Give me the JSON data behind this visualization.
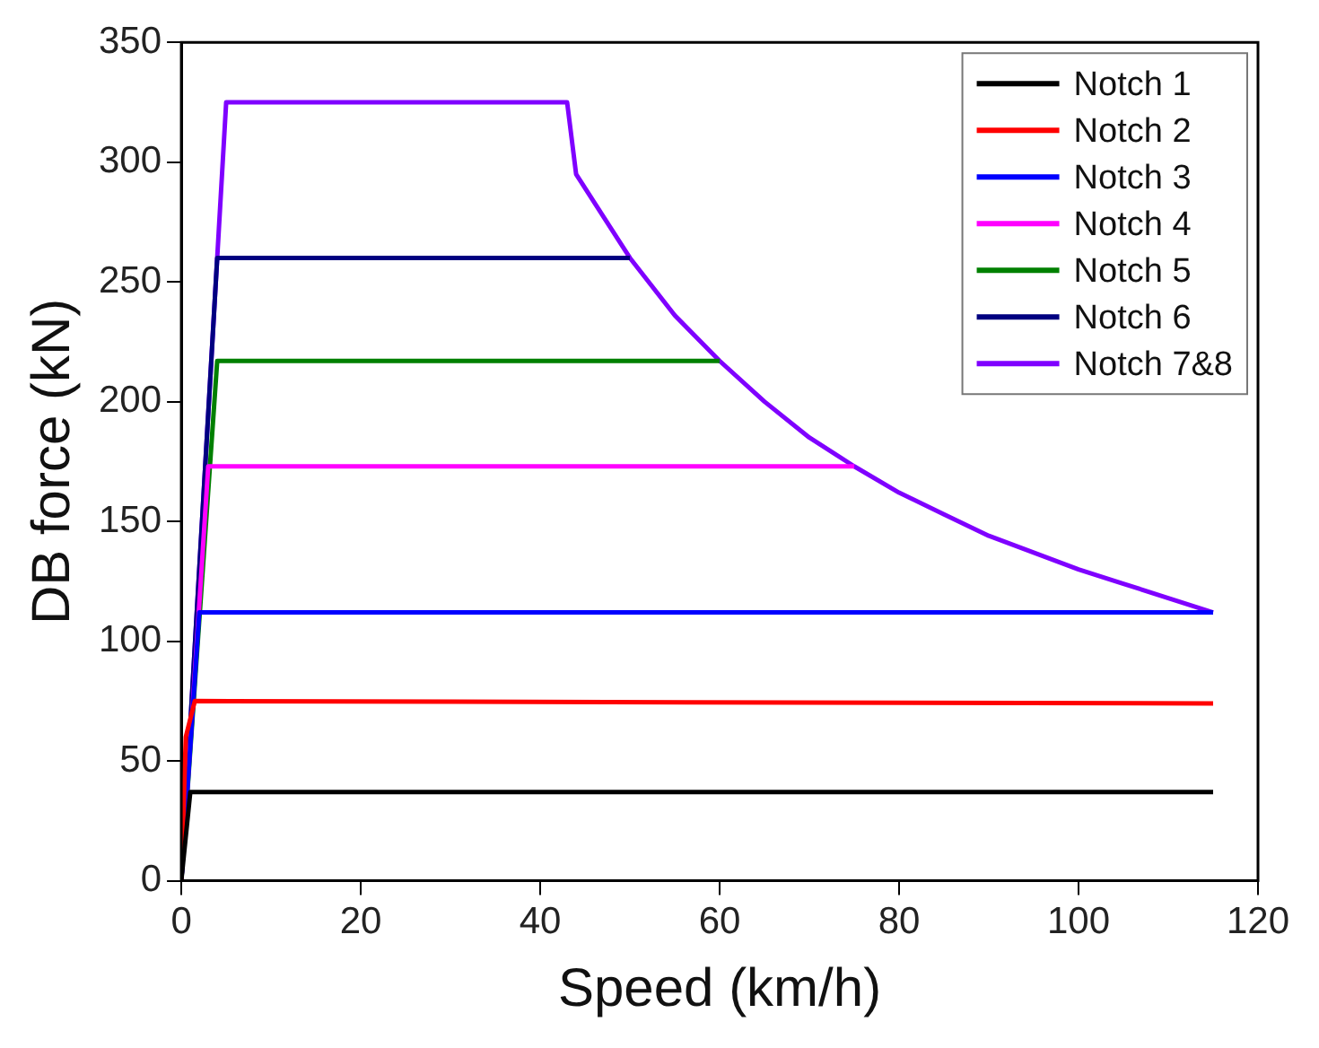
{
  "chart_data": {
    "type": "line",
    "xlabel": "Speed (km/h)",
    "ylabel": "DB force (kN)",
    "xlim": [
      0,
      120
    ],
    "xticks": [
      0,
      20,
      40,
      60,
      80,
      100,
      120
    ],
    "ylim": [
      0,
      350
    ],
    "yticks": [
      0,
      50,
      100,
      150,
      200,
      250,
      300,
      350
    ],
    "grid": false,
    "legend": "top right",
    "marker": "none",
    "line_style": "solid",
    "series": [
      {
        "name": "Notch 1",
        "color": "#000000",
        "x": [
          0,
          1,
          115
        ],
        "values": [
          0,
          37,
          37
        ]
      },
      {
        "name": "Notch 2",
        "color": "#ff0000",
        "x": [
          0,
          0.5,
          1.5,
          115
        ],
        "values": [
          0,
          60,
          75,
          74
        ]
      },
      {
        "name": "Notch 3",
        "color": "#0000ff",
        "x": [
          0,
          2,
          115
        ],
        "values": [
          0,
          112,
          112
        ]
      },
      {
        "name": "Notch 4",
        "color": "#ff00ff",
        "x": [
          0,
          3,
          75
        ],
        "values": [
          0,
          173,
          173
        ]
      },
      {
        "name": "Notch 5",
        "color": "#008000",
        "x": [
          0,
          4,
          60
        ],
        "values": [
          0,
          217,
          217
        ]
      },
      {
        "name": "Notch 6",
        "color": "#000080",
        "x": [
          0,
          4,
          50
        ],
        "values": [
          0,
          260,
          260
        ]
      },
      {
        "name": "Notch 7&8",
        "color": "#7f00ff",
        "x": [
          0,
          5,
          43,
          44,
          50,
          55,
          60,
          65,
          70,
          75,
          80,
          85,
          90,
          95,
          100,
          105,
          110,
          115
        ],
        "values": [
          0,
          325,
          325,
          295,
          260,
          236,
          217,
          200,
          185,
          173,
          162,
          153,
          144,
          137,
          130,
          124,
          118,
          112
        ]
      }
    ]
  }
}
